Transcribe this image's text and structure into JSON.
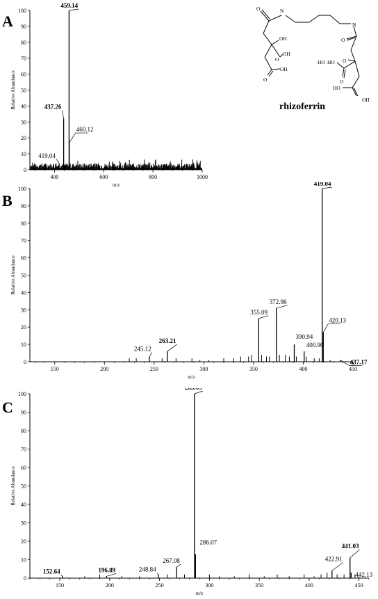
{
  "figure": {
    "compound_name": "rhizoferrin",
    "structure_atoms": [
      "O",
      "N",
      "N",
      "O",
      "OH",
      "OH",
      "O",
      "O",
      "OH",
      "HO",
      "O",
      "HO",
      "O",
      "OH",
      "HO"
    ]
  },
  "chart_data": [
    {
      "type": "bar",
      "panel": "A",
      "xlabel": "m/z",
      "ylabel": "Relative Abundance",
      "xlim": [
        300,
        1000
      ],
      "ylim": [
        0,
        100
      ],
      "xticks": [
        400,
        600,
        800,
        1000
      ],
      "yticks": [
        0,
        10,
        20,
        30,
        40,
        50,
        60,
        70,
        80,
        90,
        100
      ],
      "noise_floor": "background noise peaks up to about 6% across 300-1000",
      "peaks": [
        {
          "x": 419.04,
          "y": 4,
          "label": "419.04",
          "bold": false
        },
        {
          "x": 437.26,
          "y": 32,
          "label": "437.26",
          "bold": true
        },
        {
          "x": 459.14,
          "y": 100,
          "label": "459.14",
          "bold": true
        },
        {
          "x": 460.12,
          "y": 17,
          "label": "460.12",
          "bold": false
        }
      ]
    },
    {
      "type": "bar",
      "panel": "B",
      "xlabel": "m/z",
      "ylabel": "Relative Abundance",
      "xlim": [
        125,
        450
      ],
      "ylim": [
        0,
        100
      ],
      "xticks": [
        150,
        200,
        250,
        300,
        350,
        400,
        450
      ],
      "yticks": [
        0,
        10,
        20,
        30,
        40,
        50,
        60,
        70,
        80,
        90,
        100
      ],
      "peaks": [
        {
          "x": 245.12,
          "y": 3,
          "label": "245.12",
          "bold": false
        },
        {
          "x": 263.21,
          "y": 6,
          "label": "263.21",
          "bold": true
        },
        {
          "x": 355.09,
          "y": 25,
          "label": "355.09",
          "bold": false
        },
        {
          "x": 372.96,
          "y": 31,
          "label": "372.96",
          "bold": false
        },
        {
          "x": 390.94,
          "y": 10,
          "label": "390.94",
          "bold": false
        },
        {
          "x": 400.9,
          "y": 6,
          "label": "400.90",
          "bold": false
        },
        {
          "x": 419.04,
          "y": 100,
          "label": "419.04",
          "bold": true
        },
        {
          "x": 420.13,
          "y": 17,
          "label": "420.13",
          "bold": false
        },
        {
          "x": 437.17,
          "y": 1,
          "label": "437.17",
          "bold": true
        }
      ],
      "minor_peaks": [
        {
          "x": 225,
          "y": 2
        },
        {
          "x": 232,
          "y": 2
        },
        {
          "x": 258,
          "y": 2
        },
        {
          "x": 272,
          "y": 2
        },
        {
          "x": 288,
          "y": 2
        },
        {
          "x": 296,
          "y": 1
        },
        {
          "x": 305,
          "y": 1
        },
        {
          "x": 320,
          "y": 2
        },
        {
          "x": 330,
          "y": 2
        },
        {
          "x": 337,
          "y": 3
        },
        {
          "x": 345,
          "y": 3
        },
        {
          "x": 348,
          "y": 4
        },
        {
          "x": 358,
          "y": 4
        },
        {
          "x": 363,
          "y": 3
        },
        {
          "x": 366,
          "y": 3
        },
        {
          "x": 376,
          "y": 4
        },
        {
          "x": 382,
          "y": 4
        },
        {
          "x": 386,
          "y": 3
        },
        {
          "x": 393,
          "y": 3
        },
        {
          "x": 403,
          "y": 3
        },
        {
          "x": 411,
          "y": 2
        },
        {
          "x": 416,
          "y": 2
        },
        {
          "x": 427,
          "y": 1
        }
      ]
    },
    {
      "type": "bar",
      "panel": "C",
      "xlabel": "m/z",
      "ylabel": "Relative Abundance",
      "xlim": [
        120,
        460
      ],
      "ylim": [
        0,
        100
      ],
      "xticks": [
        150,
        200,
        250,
        300,
        350,
        400,
        450
      ],
      "yticks": [
        0,
        10,
        20,
        30,
        40,
        50,
        60,
        70,
        80,
        90,
        100
      ],
      "peaks": [
        {
          "x": 152.64,
          "y": 1,
          "label": "152.64",
          "bold": true
        },
        {
          "x": 196.89,
          "y": 1,
          "label": "196.89",
          "bold": true
        },
        {
          "x": 248.84,
          "y": 2,
          "label": "248.84",
          "bold": false
        },
        {
          "x": 267.08,
          "y": 6,
          "label": "267.08",
          "bold": false
        },
        {
          "x": 285.09,
          "y": 100,
          "label": "285.09",
          "bold": true
        },
        {
          "x": 286.07,
          "y": 13,
          "label": "286.07",
          "bold": false
        },
        {
          "x": 422.91,
          "y": 4,
          "label": "422.91",
          "bold": false
        },
        {
          "x": 441.03,
          "y": 11,
          "label": "441.03",
          "bold": true
        },
        {
          "x": 442.13,
          "y": 3,
          "label": "442.13",
          "bold": false
        }
      ],
      "minor_peaks": [
        {
          "x": 175,
          "y": 1
        },
        {
          "x": 190,
          "y": 2
        },
        {
          "x": 212,
          "y": 1
        },
        {
          "x": 230,
          "y": 1
        },
        {
          "x": 258,
          "y": 2
        },
        {
          "x": 275,
          "y": 2
        },
        {
          "x": 300,
          "y": 2
        },
        {
          "x": 310,
          "y": 1
        },
        {
          "x": 325,
          "y": 1
        },
        {
          "x": 340,
          "y": 2
        },
        {
          "x": 355,
          "y": 1
        },
        {
          "x": 368,
          "y": 2
        },
        {
          "x": 380,
          "y": 1
        },
        {
          "x": 395,
          "y": 2
        },
        {
          "x": 405,
          "y": 1
        },
        {
          "x": 412,
          "y": 2
        },
        {
          "x": 418,
          "y": 3
        },
        {
          "x": 428,
          "y": 2
        },
        {
          "x": 435,
          "y": 2
        },
        {
          "x": 446,
          "y": 2
        },
        {
          "x": 450,
          "y": 1
        }
      ]
    }
  ]
}
